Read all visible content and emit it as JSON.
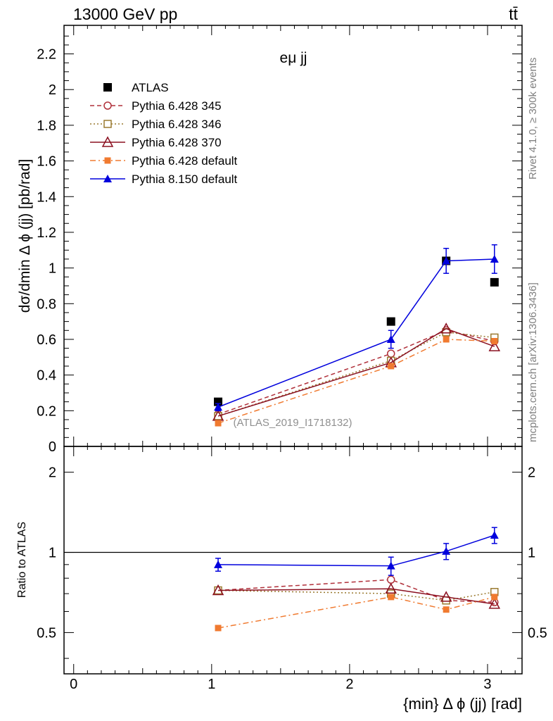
{
  "header": {
    "left": "13000 GeV pp",
    "right": "tt̄"
  },
  "side_labels": {
    "rivet": "Rivet 4.1.0, ≥ 300k events",
    "mcplots": "mcplots.cern.ch [arXiv:1306.3436]"
  },
  "chart_data": [
    {
      "type": "line",
      "title": "eμ jj",
      "ylabel": "dσ/dmin Δ ϕ (jj) [pb/rad]",
      "xlabel": "{min} Δ ϕ (jj) [rad]",
      "xlim": [
        -0.07,
        3.25
      ],
      "ylim": [
        0,
        2.36
      ],
      "xticks": [
        0,
        1,
        2,
        3
      ],
      "yticks": [
        0,
        0.2,
        0.4,
        0.6,
        0.8,
        1,
        1.2,
        1.4,
        1.6,
        1.8,
        2,
        2.2
      ],
      "ytick_labels": [
        "0",
        "0.2",
        "0.4",
        "0.6",
        "0.8",
        "1",
        "1.2",
        "1.4",
        "1.6",
        "1.8",
        "2",
        "2.2"
      ],
      "watermark": "(ATLAS_2019_I1718132)",
      "legend_position": "top-left",
      "x": [
        1.047,
        2.3,
        2.7,
        3.05
      ],
      "series": [
        {
          "name": "ATLAS",
          "color": "#000000",
          "marker": "square",
          "line": "none",
          "values": [
            0.25,
            0.7,
            1.04,
            0.92
          ],
          "err": [
            0,
            0,
            0,
            0
          ]
        },
        {
          "name": "Pythia 6.428 345",
          "color": "#b0303a",
          "marker": "circle-open",
          "line": "dashed",
          "values": [
            0.18,
            0.52,
            0.65,
            0.59
          ],
          "err": [
            0,
            0,
            0,
            0
          ]
        },
        {
          "name": "Pythia 6.428 346",
          "color": "#9a7a30",
          "marker": "square-open",
          "line": "dotted",
          "values": [
            0.17,
            0.48,
            0.64,
            0.61
          ],
          "err": [
            0,
            0,
            0,
            0
          ]
        },
        {
          "name": "Pythia 6.428 370",
          "color": "#8b1020",
          "marker": "triangle-open",
          "line": "solid",
          "values": [
            0.17,
            0.47,
            0.66,
            0.56
          ],
          "err": [
            0,
            0,
            0,
            0
          ]
        },
        {
          "name": "Pythia 6.428 default",
          "color": "#f07a30",
          "marker": "square-filled-small",
          "line": "dashdot",
          "values": [
            0.13,
            0.45,
            0.6,
            0.59
          ],
          "err": [
            0,
            0,
            0,
            0
          ]
        },
        {
          "name": "Pythia 8.150 default",
          "color": "#0000dd",
          "marker": "triangle",
          "line": "solid",
          "values": [
            0.22,
            0.6,
            1.04,
            1.05
          ],
          "err": [
            0.02,
            0.05,
            0.07,
            0.08
          ]
        }
      ]
    },
    {
      "type": "line",
      "ylabel": "Ratio to ATLAS",
      "xlabel": "{min} Δ ϕ (jj) [rad]",
      "xlim": [
        -0.07,
        3.25
      ],
      "ylim": [
        0.35,
        2.5
      ],
      "ylog": true,
      "yticks": [
        0.5,
        1,
        2
      ],
      "ytick_labels": [
        "0.5",
        "1",
        "2"
      ],
      "x": [
        1.047,
        2.3,
        2.7,
        3.05
      ],
      "reference": 1,
      "series": [
        {
          "name": "Pythia 6.428 345",
          "color": "#b0303a",
          "marker": "circle-open",
          "line": "dashed",
          "values": [
            0.72,
            0.79,
            0.66,
            0.65
          ],
          "err": [
            0,
            0,
            0,
            0
          ]
        },
        {
          "name": "Pythia 6.428 346",
          "color": "#9a7a30",
          "marker": "square-open",
          "line": "dotted",
          "values": [
            0.72,
            0.7,
            0.66,
            0.71
          ],
          "err": [
            0,
            0,
            0,
            0
          ]
        },
        {
          "name": "Pythia 6.428 370",
          "color": "#8b1020",
          "marker": "triangle-open",
          "line": "solid",
          "values": [
            0.72,
            0.73,
            0.68,
            0.64
          ],
          "err": [
            0,
            0,
            0,
            0
          ]
        },
        {
          "name": "Pythia 6.428 default",
          "color": "#f07a30",
          "marker": "square-filled-small",
          "line": "dashdot",
          "values": [
            0.52,
            0.68,
            0.61,
            0.68
          ],
          "err": [
            0,
            0,
            0,
            0
          ]
        },
        {
          "name": "Pythia 8.150 default",
          "color": "#0000dd",
          "marker": "triangle",
          "line": "solid",
          "values": [
            0.9,
            0.89,
            1.01,
            1.16
          ],
          "err": [
            0.05,
            0.07,
            0.07,
            0.08
          ]
        }
      ]
    }
  ]
}
